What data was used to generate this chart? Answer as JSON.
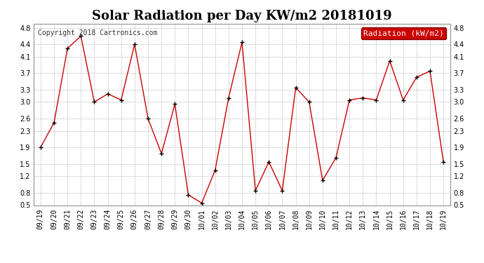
{
  "title": "Solar Radiation per Day KW/m2 20181019",
  "copyright": "Copyright 2018 Cartronics.com",
  "legend_label": "Radiation (kW/m2)",
  "dates": [
    "09/19",
    "09/20",
    "09/21",
    "09/22",
    "09/23",
    "09/24",
    "09/25",
    "09/26",
    "09/27",
    "09/28",
    "09/29",
    "09/30",
    "10/01",
    "10/02",
    "10/03",
    "10/04",
    "10/05",
    "10/06",
    "10/07",
    "10/08",
    "10/09",
    "10/10",
    "10/11",
    "10/12",
    "10/13",
    "10/14",
    "10/15",
    "10/16",
    "10/17",
    "10/18",
    "10/19"
  ],
  "values": [
    1.9,
    2.5,
    4.3,
    4.6,
    3.0,
    3.2,
    3.05,
    4.4,
    2.6,
    1.75,
    2.95,
    0.75,
    0.55,
    1.35,
    3.1,
    4.45,
    0.85,
    1.55,
    0.85,
    3.35,
    3.0,
    1.1,
    1.65,
    3.05,
    3.1,
    3.05,
    4.0,
    3.05,
    3.6,
    3.75,
    1.55
  ],
  "line_color": "#cc0000",
  "marker_color": "#000000",
  "legend_bg_color": "#cc0000",
  "legend_text_color": "#ffffff",
  "grid_color": "#bbbbbb",
  "bg_color": "#ffffff",
  "plot_bg_color": "#ffffff",
  "ylim": [
    0.5,
    4.9
  ],
  "yticks": [
    0.5,
    0.8,
    1.2,
    1.5,
    1.9,
    2.3,
    2.6,
    3.0,
    3.3,
    3.7,
    4.1,
    4.4,
    4.8
  ],
  "title_fontsize": 13,
  "copyright_fontsize": 7,
  "tick_fontsize": 7,
  "legend_fontsize": 8
}
